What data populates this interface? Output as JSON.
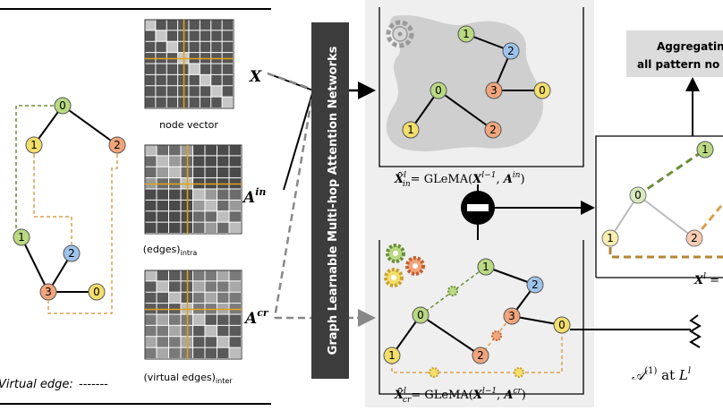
{
  "left_panel": {
    "virtual_edge_label": "Virtual edge:",
    "virtual_edge_sample": "-------",
    "tree_top_nodes": [
      "0",
      "1",
      "2"
    ],
    "tree_bottom_nodes": [
      "1",
      "2",
      "3",
      "0"
    ]
  },
  "matrices": {
    "captions": {
      "node_vector": "node vector",
      "intra": "(edges)",
      "intra_sub": "intra",
      "inter": "(virtual edges)",
      "inter_sub": "inter"
    },
    "symbols": {
      "x": "X",
      "a": "A",
      "a_in_sup": "in",
      "a_cr_sup": "cr"
    }
  },
  "gnn_bar_label": "Graph Learnable Multi-hop Attention Networks",
  "formulas": {
    "hat_x": "X̂",
    "eq": "= GLeMA(",
    "x_prev": "X",
    "x_prev_sup": "l−1",
    "comma": ", ",
    "in_sub": "in",
    "cr_sub": "cr",
    "in_l": "l",
    "close": ")"
  },
  "upper_panel_nodes": [
    "1",
    "2",
    "3",
    "0",
    "0",
    "1",
    "2"
  ],
  "lower_panel_nodes": [
    "1",
    "2",
    "0",
    "3",
    "0",
    "1",
    "2"
  ],
  "aggregating_box": {
    "line1": "Aggregating",
    "line2": "all pattern no"
  },
  "right_panel": {
    "nodes": [
      "1",
      "0",
      "1",
      "2"
    ],
    "x_label": "X",
    "x_sup": "l",
    "x_eq": " ="
  },
  "attention_label": {
    "a": "𝒜",
    "sup": "(1)",
    "at": " at ",
    "l": "L",
    "l_sup": "l"
  },
  "colors": {
    "green": "#b9d982",
    "yellow": "#f3de6c",
    "blue": "#9ec3ea",
    "orange": "#f2a57c",
    "dashed_orange": "#d9a04f",
    "dashed_green": "#6a8d3a",
    "panel_bg": "#efefef",
    "bar_dark": "#3c3c3c"
  }
}
